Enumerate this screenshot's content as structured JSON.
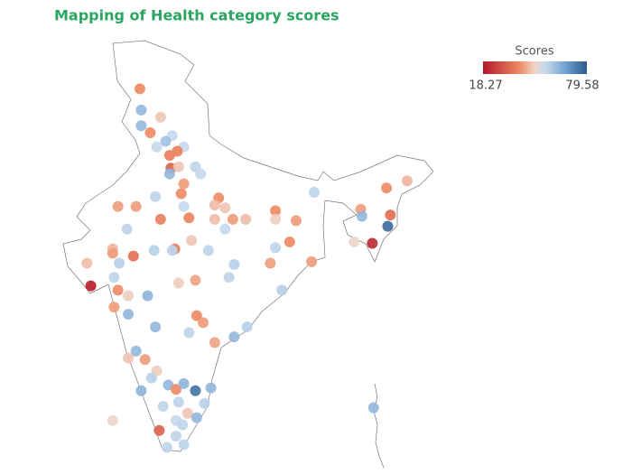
{
  "chart_data": {
    "type": "map",
    "title": "Mapping of Health category scores",
    "colorbar_title": "Scores",
    "cmin": 18.27,
    "cmax": 79.58,
    "colorscale": [
      [
        0,
        "#b2182b"
      ],
      [
        0.35,
        "#ef8a62"
      ],
      [
        0.5,
        "#efd6ca"
      ],
      [
        0.6,
        "#c6d9ec"
      ],
      [
        0.8,
        "#6fa0d0"
      ],
      [
        1,
        "#2a5a8c"
      ]
    ],
    "points": [
      {
        "lon": 74.6,
        "lat": 33.6,
        "score": 40
      },
      {
        "lon": 74.7,
        "lat": 32.1,
        "score": 62
      },
      {
        "lon": 76.2,
        "lat": 31.6,
        "score": 47
      },
      {
        "lon": 74.7,
        "lat": 31.0,
        "score": 62
      },
      {
        "lon": 75.4,
        "lat": 30.5,
        "score": 40
      },
      {
        "lon": 77.1,
        "lat": 30.3,
        "score": 55
      },
      {
        "lon": 76.6,
        "lat": 29.9,
        "score": 60
      },
      {
        "lon": 78.0,
        "lat": 29.5,
        "score": 55
      },
      {
        "lon": 75.9,
        "lat": 29.5,
        "score": 55
      },
      {
        "lon": 76.9,
        "lat": 28.9,
        "score": 38
      },
      {
        "lon": 77.5,
        "lat": 29.2,
        "score": 38
      },
      {
        "lon": 77.0,
        "lat": 28.0,
        "score": 33
      },
      {
        "lon": 76.9,
        "lat": 27.6,
        "score": 62
      },
      {
        "lon": 77.6,
        "lat": 28.1,
        "score": 47
      },
      {
        "lon": 78.9,
        "lat": 28.1,
        "score": 56
      },
      {
        "lon": 79.3,
        "lat": 27.6,
        "score": 55
      },
      {
        "lon": 78.0,
        "lat": 26.9,
        "score": 42
      },
      {
        "lon": 77.8,
        "lat": 26.2,
        "score": 40
      },
      {
        "lon": 75.8,
        "lat": 26.0,
        "score": 56
      },
      {
        "lon": 72.9,
        "lat": 25.3,
        "score": 42
      },
      {
        "lon": 74.3,
        "lat": 25.3,
        "score": 42
      },
      {
        "lon": 78.0,
        "lat": 25.3,
        "score": 55
      },
      {
        "lon": 80.7,
        "lat": 25.9,
        "score": 40
      },
      {
        "lon": 80.4,
        "lat": 25.4,
        "score": 46
      },
      {
        "lon": 81.2,
        "lat": 25.2,
        "score": 47
      },
      {
        "lon": 76.2,
        "lat": 24.4,
        "score": 38
      },
      {
        "lon": 78.4,
        "lat": 24.5,
        "score": 39
      },
      {
        "lon": 80.4,
        "lat": 24.4,
        "score": 46
      },
      {
        "lon": 81.8,
        "lat": 24.4,
        "score": 42
      },
      {
        "lon": 82.8,
        "lat": 24.4,
        "score": 46
      },
      {
        "lon": 81.2,
        "lat": 23.7,
        "score": 55
      },
      {
        "lon": 73.6,
        "lat": 23.7,
        "score": 56
      },
      {
        "lon": 78.6,
        "lat": 22.9,
        "score": 47
      },
      {
        "lon": 77.3,
        "lat": 22.3,
        "score": 37
      },
      {
        "lon": 75.7,
        "lat": 22.2,
        "score": 57
      },
      {
        "lon": 77.1,
        "lat": 22.2,
        "score": 56
      },
      {
        "lon": 79.9,
        "lat": 22.2,
        "score": 56
      },
      {
        "lon": 72.5,
        "lat": 22.3,
        "score": 45
      },
      {
        "lon": 72.5,
        "lat": 22.0,
        "score": 42
      },
      {
        "lon": 74.1,
        "lat": 21.8,
        "score": 35
      },
      {
        "lon": 70.5,
        "lat": 21.3,
        "score": 46
      },
      {
        "lon": 70.8,
        "lat": 19.7,
        "score": 20
      },
      {
        "lon": 73.0,
        "lat": 21.3,
        "score": 57
      },
      {
        "lon": 72.6,
        "lat": 20.3,
        "score": 56
      },
      {
        "lon": 72.9,
        "lat": 19.4,
        "score": 40
      },
      {
        "lon": 73.7,
        "lat": 19.0,
        "score": 48
      },
      {
        "lon": 75.2,
        "lat": 19.0,
        "score": 63
      },
      {
        "lon": 72.6,
        "lat": 18.2,
        "score": 42
      },
      {
        "lon": 73.7,
        "lat": 17.7,
        "score": 62
      },
      {
        "lon": 77.6,
        "lat": 19.9,
        "score": 48
      },
      {
        "lon": 78.9,
        "lat": 20.1,
        "score": 43
      },
      {
        "lon": 81.9,
        "lat": 21.2,
        "score": 57
      },
      {
        "lon": 81.5,
        "lat": 20.3,
        "score": 56
      },
      {
        "lon": 75.8,
        "lat": 16.8,
        "score": 62
      },
      {
        "lon": 79.0,
        "lat": 17.6,
        "score": 40
      },
      {
        "lon": 79.5,
        "lat": 17.1,
        "score": 42
      },
      {
        "lon": 78.4,
        "lat": 16.4,
        "score": 56
      },
      {
        "lon": 81.9,
        "lat": 16.1,
        "score": 62
      },
      {
        "lon": 82.9,
        "lat": 16.8,
        "score": 57
      },
      {
        "lon": 80.4,
        "lat": 15.7,
        "score": 43
      },
      {
        "lon": 74.3,
        "lat": 15.1,
        "score": 62
      },
      {
        "lon": 73.7,
        "lat": 14.6,
        "score": 47
      },
      {
        "lon": 75.0,
        "lat": 14.5,
        "score": 42
      },
      {
        "lon": 75.9,
        "lat": 13.7,
        "score": 48
      },
      {
        "lon": 75.5,
        "lat": 13.2,
        "score": 57
      },
      {
        "lon": 74.7,
        "lat": 12.3,
        "score": 63
      },
      {
        "lon": 76.8,
        "lat": 12.7,
        "score": 62
      },
      {
        "lon": 77.4,
        "lat": 12.4,
        "score": 40
      },
      {
        "lon": 78.0,
        "lat": 12.8,
        "score": 63
      },
      {
        "lon": 78.9,
        "lat": 12.3,
        "score": 75
      },
      {
        "lon": 80.1,
        "lat": 12.5,
        "score": 62
      },
      {
        "lon": 79.6,
        "lat": 11.4,
        "score": 57
      },
      {
        "lon": 77.6,
        "lat": 11.5,
        "score": 56
      },
      {
        "lon": 76.4,
        "lat": 11.2,
        "score": 56
      },
      {
        "lon": 78.3,
        "lat": 10.7,
        "score": 47
      },
      {
        "lon": 77.4,
        "lat": 10.2,
        "score": 55
      },
      {
        "lon": 79.0,
        "lat": 10.4,
        "score": 62
      },
      {
        "lon": 76.1,
        "lat": 9.5,
        "score": 33
      },
      {
        "lon": 77.9,
        "lat": 9.9,
        "score": 56
      },
      {
        "lon": 77.4,
        "lat": 9.1,
        "score": 56
      },
      {
        "lon": 78.0,
        "lat": 8.5,
        "score": 56
      },
      {
        "lon": 76.7,
        "lat": 8.3,
        "score": 56
      },
      {
        "lon": 72.5,
        "lat": 10.2,
        "score": 49
      },
      {
        "lon": 92.7,
        "lat": 11.1,
        "score": 62
      },
      {
        "lon": 85.6,
        "lat": 19.4,
        "score": 57
      },
      {
        "lon": 84.7,
        "lat": 21.3,
        "score": 42
      },
      {
        "lon": 85.1,
        "lat": 22.4,
        "score": 56
      },
      {
        "lon": 86.2,
        "lat": 22.8,
        "score": 40
      },
      {
        "lon": 85.1,
        "lat": 25.0,
        "score": 40
      },
      {
        "lon": 86.7,
        "lat": 24.3,
        "score": 42
      },
      {
        "lon": 85.1,
        "lat": 24.4,
        "score": 48
      },
      {
        "lon": 88.1,
        "lat": 26.3,
        "score": 56
      },
      {
        "lon": 87.9,
        "lat": 21.4,
        "score": 42
      },
      {
        "lon": 91.7,
        "lat": 25.1,
        "score": 42
      },
      {
        "lon": 91.8,
        "lat": 24.6,
        "score": 62
      },
      {
        "lon": 94.0,
        "lat": 24.7,
        "score": 35
      },
      {
        "lon": 93.8,
        "lat": 23.9,
        "score": 76
      },
      {
        "lon": 92.6,
        "lat": 22.7,
        "score": 22
      },
      {
        "lon": 91.2,
        "lat": 22.8,
        "score": 49
      },
      {
        "lon": 93.7,
        "lat": 26.6,
        "score": 40
      },
      {
        "lon": 95.3,
        "lat": 27.1,
        "score": 45
      }
    ]
  }
}
